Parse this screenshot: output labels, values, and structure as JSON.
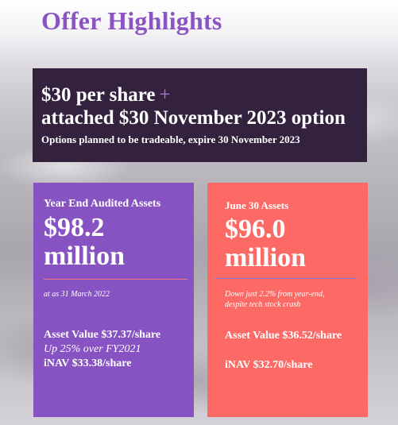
{
  "title": "Offer Highlights",
  "offer": {
    "line1": "$30 per share",
    "plus": "+",
    "line2": "attached $30 November 2023 option",
    "subtitle": "Options planned to be tradeable, expire 30 November 2023"
  },
  "cards": [
    {
      "heading": "Year End Audited Assets",
      "amount": "$98.2",
      "unit": "million",
      "note": "at as 31 March 2022",
      "asset_value": "Asset Value $37.37/share",
      "growth": "Up 25% over FY2021",
      "inav": "iNAV $33.38/share"
    },
    {
      "heading": "June 30 Assets",
      "amount": "$96.0",
      "unit": "million",
      "note_line1": "Down just 2.2% from year-end,",
      "note_line2": "despite tech stock crash",
      "asset_value": "Asset Value $36.52/share",
      "inav": "iNAV $32.70/share"
    }
  ],
  "colors": {
    "title": "#8a55c3",
    "offer_bg": "#33213d",
    "left_card": "#8753c2",
    "right_card": "#fd6a65"
  }
}
